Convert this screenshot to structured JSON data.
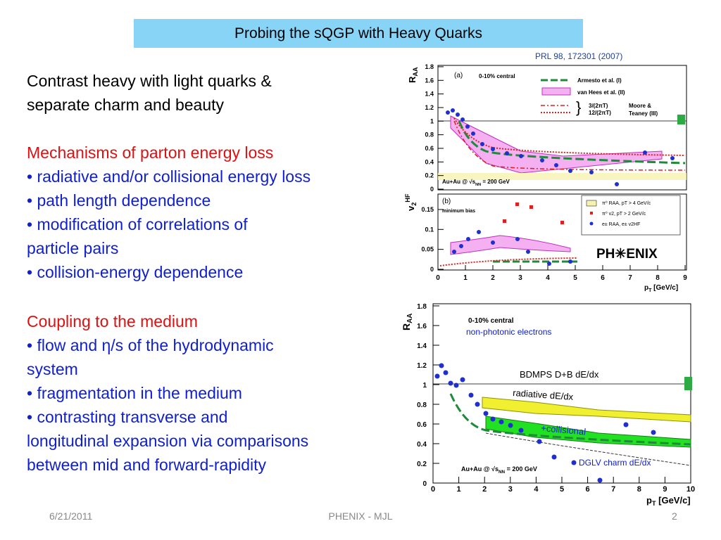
{
  "header": {
    "title": "Probing the sQGP with Heavy Quarks",
    "citation": "PRL 98, 172301 (2007)"
  },
  "body": {
    "intro": [
      "Contrast heavy with light quarks &",
      "separate charm and beauty"
    ],
    "sections": [
      {
        "heading": "Mechanisms of parton energy loss",
        "lines": [
          "• radiative and/or collisional energy loss",
          "• path length dependence",
          "• modification of correlations of",
          "particle pairs",
          "• collision-energy dependence"
        ]
      },
      {
        "heading": "Coupling to the medium",
        "lines": [
          "• flow and η/s of the hydrodynamic",
          "system",
          "• fragmentation in the medium",
          "• contrasting transverse and",
          "longitudinal expansion via comparisons",
          "between mid and forward-rapidity"
        ]
      }
    ]
  },
  "figure_top": {
    "panel_a": {
      "tag": "(a)",
      "centrality": "0-10% central",
      "ylabel": {
        "main": "R",
        "sub": "AA"
      },
      "yticks": [
        0,
        0.2,
        0.4,
        0.6,
        0.8,
        1,
        1.2,
        1.4,
        1.6,
        1.8
      ],
      "legend": [
        "Armesto et al. (I)",
        "van Hees et al. (II)",
        "3/(2πT)",
        "12/(2πT)",
        "Moore &",
        "Teaney (III)"
      ],
      "system": {
        "prefix": "Au+Au @ √s",
        "sub": "NN",
        "suffix": " = 200 GeV"
      }
    },
    "panel_b": {
      "tag": "(b)",
      "centrality": "minimum bias",
      "ylabel": {
        "main": "v",
        "sub": "2",
        "sup": "HF"
      },
      "yticks": [
        0,
        0.05,
        0.1,
        0.15
      ],
      "legend": [
        "π⁰ RAA, pT > 4 GeV/c",
        "π⁰ v2, pT > 2 GeV/c",
        "e± RAA, e± v2HF"
      ],
      "logo": "PH✳ENIX",
      "xticks": [
        0,
        1,
        2,
        3,
        4,
        5,
        6,
        7,
        8,
        9
      ],
      "xlabel": {
        "main": "p",
        "sub": "T",
        "suffix": " [GeV/c]"
      }
    }
  },
  "figure_bottom": {
    "ylabel": {
      "main": "R",
      "sub": "AA"
    },
    "yticks": [
      0,
      0.2,
      0.4,
      0.6,
      0.8,
      1,
      1.2,
      1.4,
      1.6,
      1.8
    ],
    "xticks": [
      0,
      1,
      2,
      3,
      4,
      5,
      6,
      7,
      8,
      9,
      10
    ],
    "xlabel": {
      "main": "p",
      "sub": "T",
      "suffix": " [GeV/c]"
    },
    "centrality": "0-10% central",
    "sample": "non-photonic electrons",
    "annotations": [
      "BDMPS D+B dE/dx",
      "radiative dE/dx",
      "+collisional",
      "DGLV charm dE/dx"
    ],
    "system": {
      "prefix": "Au+Au @ √s",
      "sub": "NN",
      "suffix": " = 200 GeV"
    }
  },
  "footer": {
    "date": "6/21/2011",
    "center": "PHENIX - MJL",
    "page": "2"
  }
}
